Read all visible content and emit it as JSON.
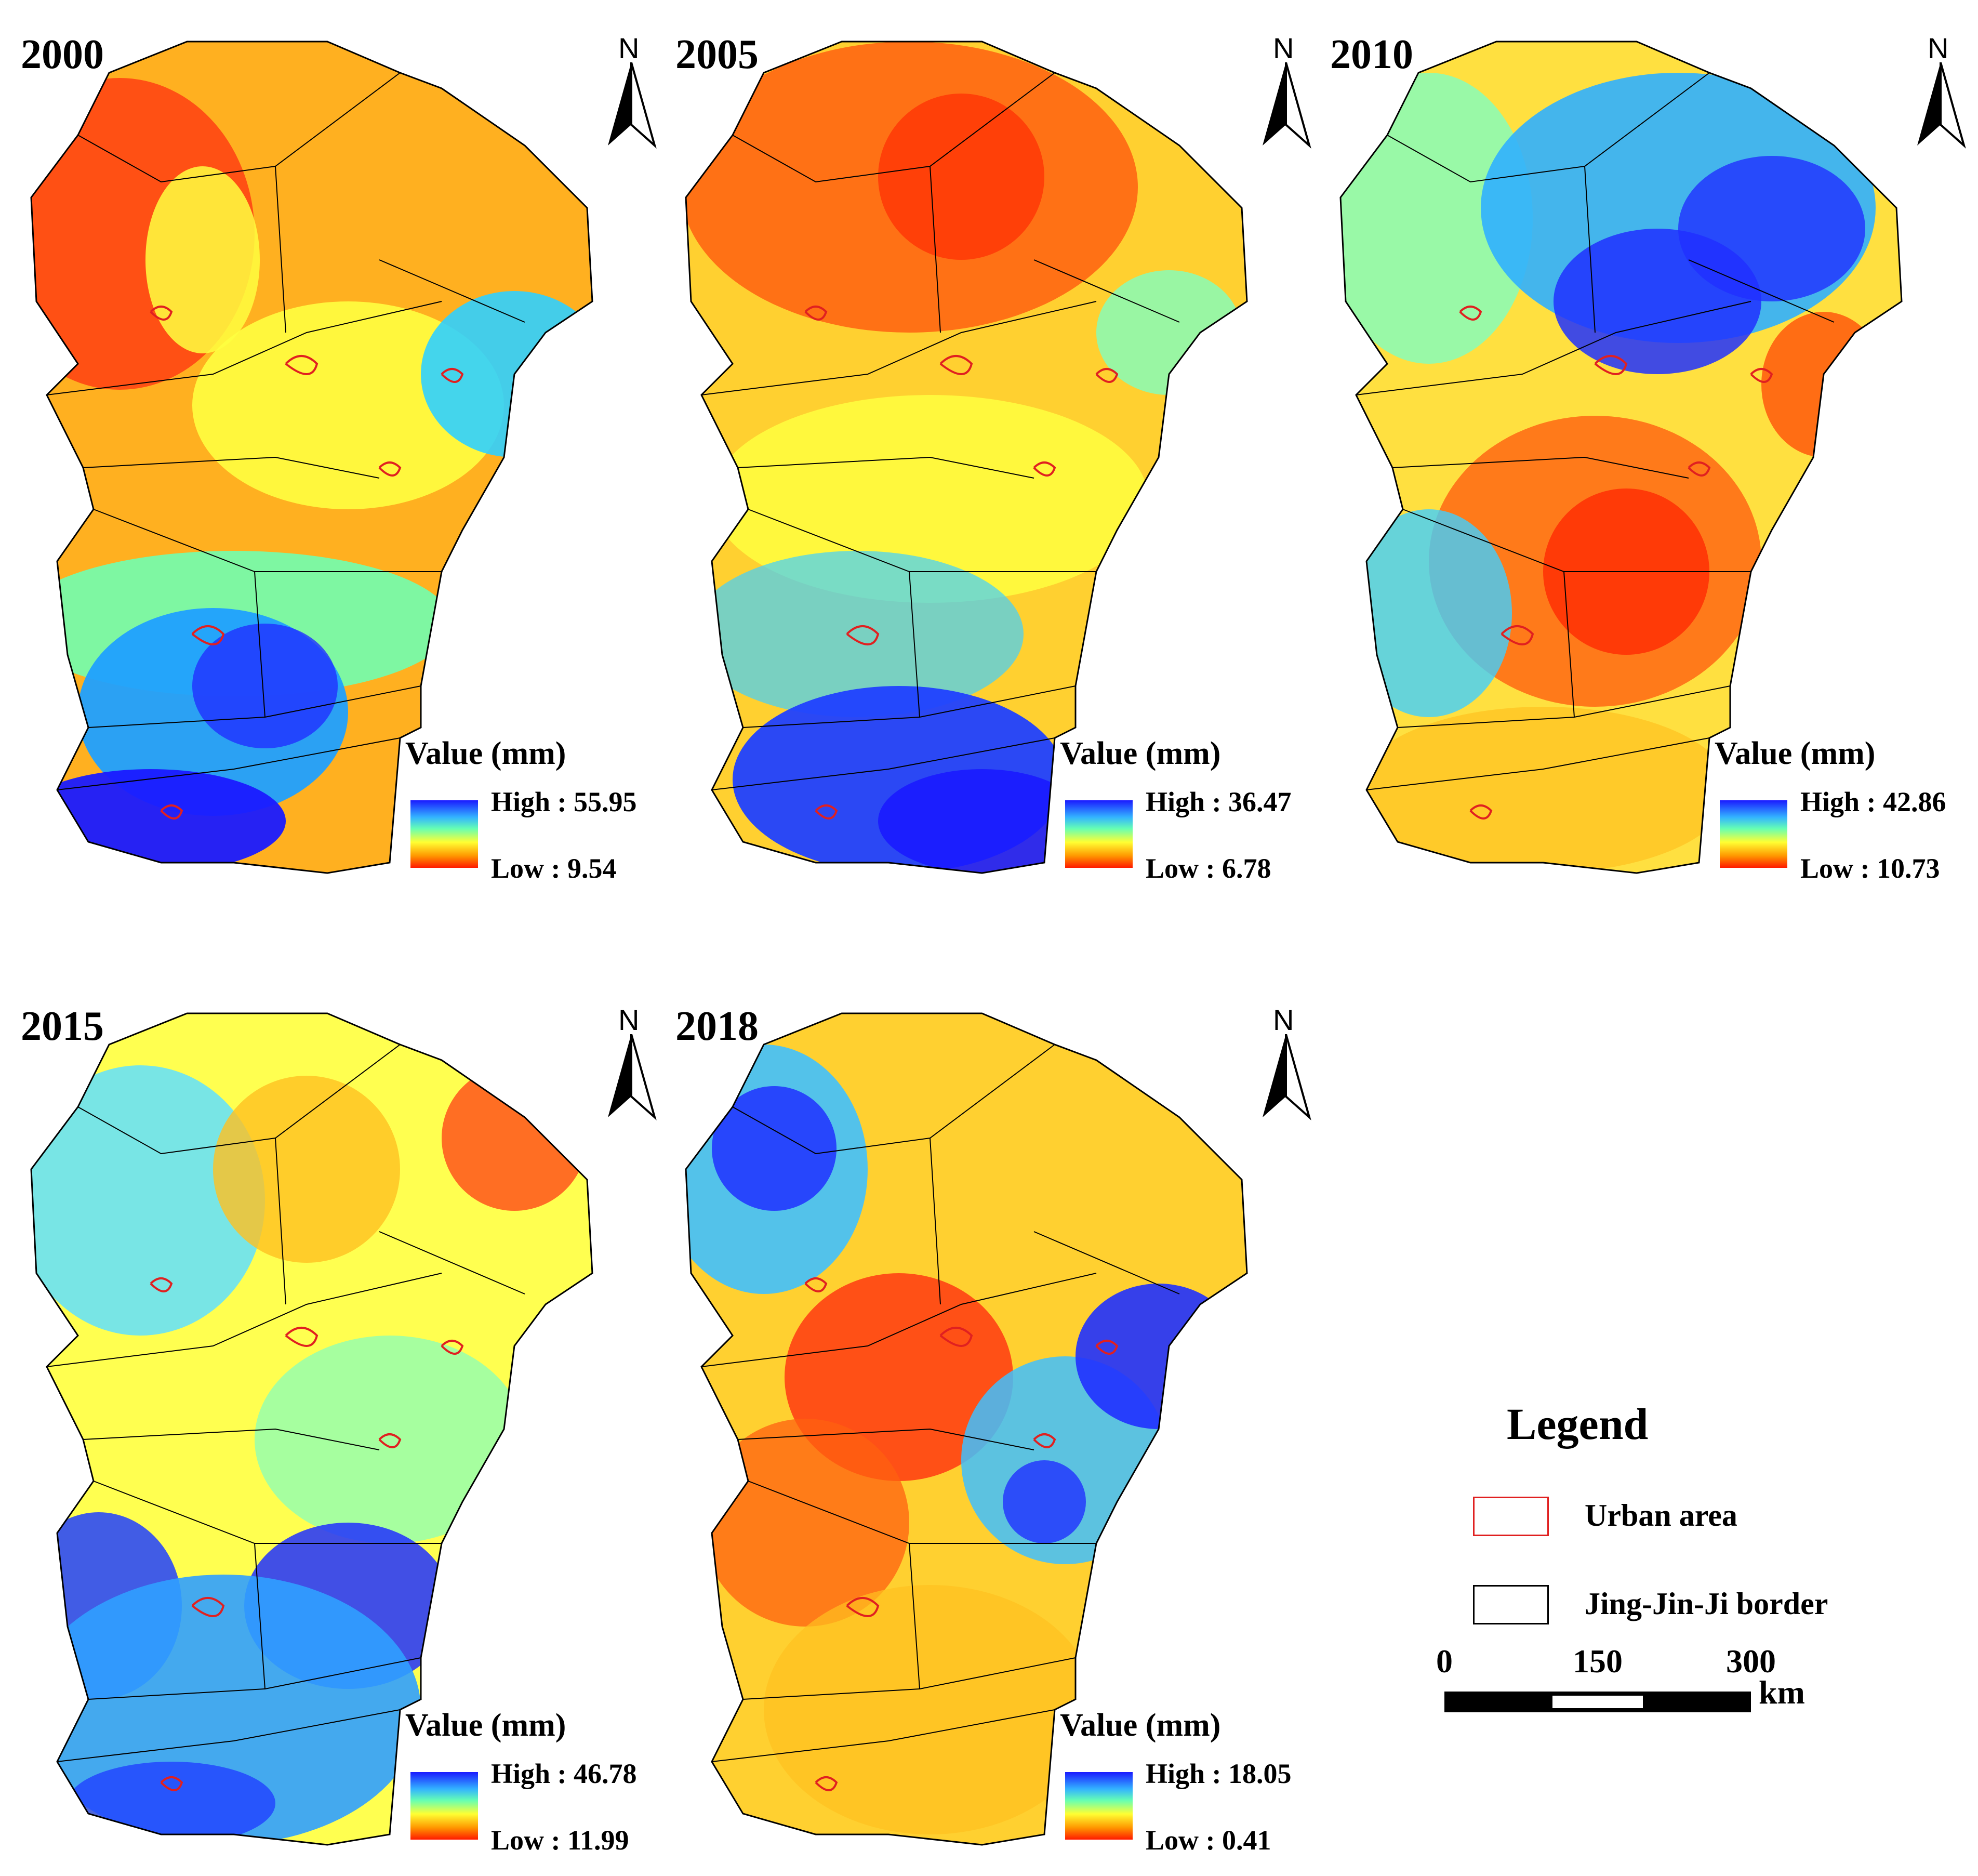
{
  "panels": [
    {
      "year": "2000",
      "north": "N",
      "value_title": "Value (mm)",
      "high": "High : 55.95",
      "low": "Low : 9.54"
    },
    {
      "year": "2005",
      "north": "N",
      "value_title": "Value (mm)",
      "high": "High : 36.47",
      "low": "Low : 6.78"
    },
    {
      "year": "2010",
      "north": "N",
      "value_title": "Value (mm)",
      "high": "High : 42.86",
      "low": "Low : 10.73"
    },
    {
      "year": "2015",
      "north": "N",
      "value_title": "Value (mm)",
      "high": "High : 46.78",
      "low": "Low : 11.99"
    },
    {
      "year": "2018",
      "north": "N",
      "value_title": "Value (mm)",
      "high": "High : 18.05",
      "low": "Low : 0.41"
    }
  ],
  "legend": {
    "title": "Legend",
    "urban_label": "Urban area",
    "border_label": "Jing-Jin-Ji border"
  },
  "scale_bar": {
    "t0": "0",
    "t1": "150",
    "t2": "300",
    "unit": "km"
  },
  "colors": {
    "high": "#1a1aff",
    "mid": "#ffff33",
    "low": "#ff1a00",
    "urban_outline": "#e02020",
    "border": "#000000"
  },
  "icons": {
    "north_arrow": "north-arrow-icon"
  }
}
